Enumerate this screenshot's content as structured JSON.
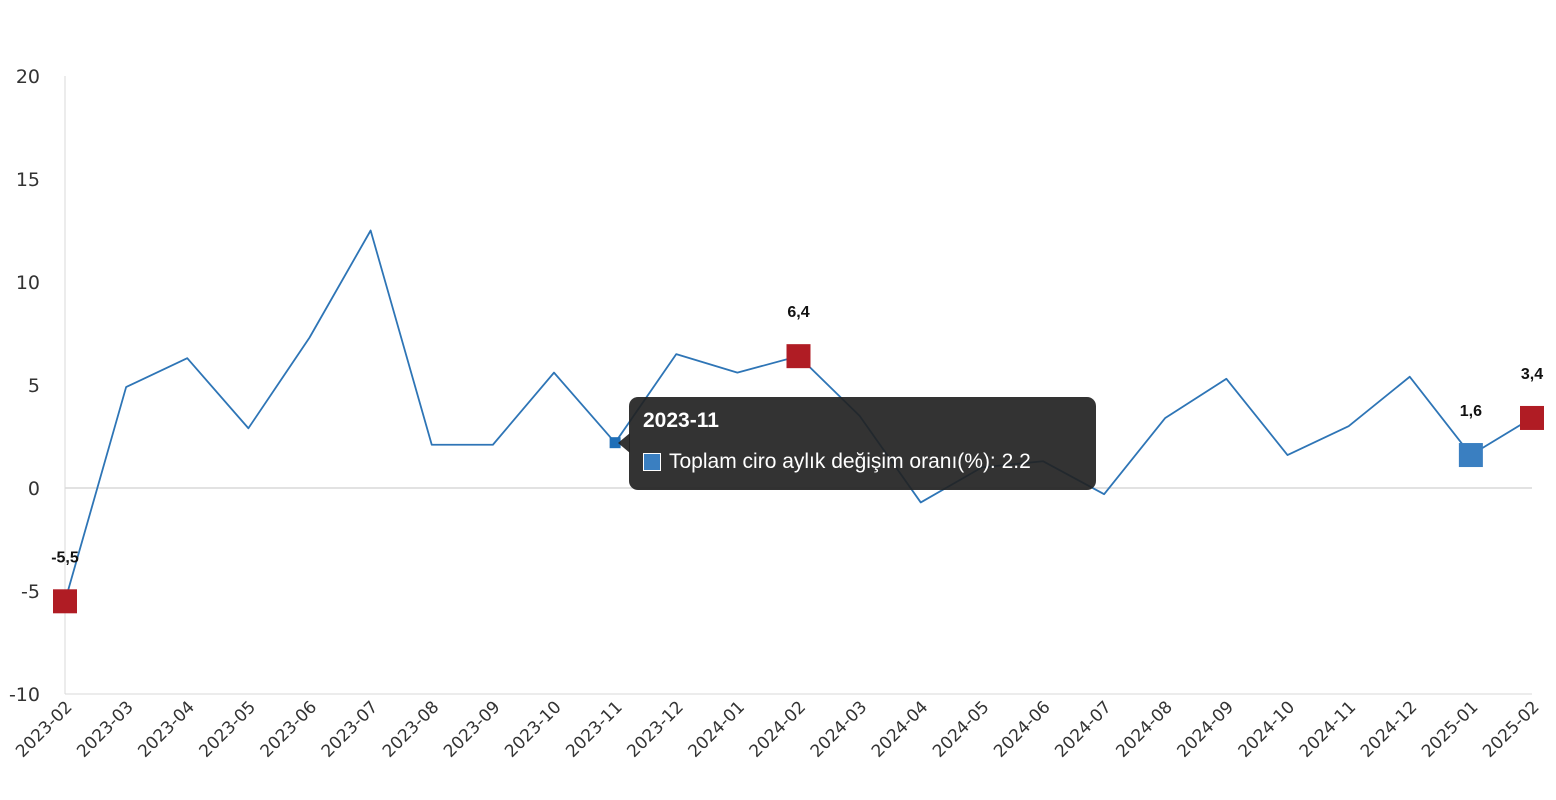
{
  "chart_data": {
    "type": "line",
    "categories": [
      "2023-02",
      "2023-03",
      "2023-04",
      "2023-05",
      "2023-06",
      "2023-07",
      "2023-08",
      "2023-09",
      "2023-10",
      "2023-11",
      "2023-12",
      "2024-01",
      "2024-02",
      "2024-03",
      "2024-04",
      "2024-05",
      "2024-06",
      "2024-07",
      "2024-08",
      "2024-09",
      "2024-10",
      "2024-11",
      "2024-12",
      "2025-01",
      "2025-02"
    ],
    "series": [
      {
        "name": "Toplam ciro aylık değişim oranı(%)",
        "values": [
          -5.5,
          4.9,
          6.3,
          2.9,
          7.3,
          12.5,
          2.1,
          2.1,
          5.6,
          2.2,
          6.5,
          5.6,
          6.4,
          3.5,
          -0.7,
          1.0,
          1.3,
          -0.3,
          3.4,
          5.3,
          1.6,
          3.0,
          5.4,
          1.6,
          3.4
        ],
        "color": "#2e75b6"
      }
    ],
    "ylim": [
      -10,
      20
    ],
    "yticks": [
      "-10",
      "-5",
      "0",
      "5",
      "10",
      "15",
      "20"
    ],
    "ytick_values": [
      -10,
      -5,
      0,
      5,
      10,
      15,
      20
    ],
    "grid": false,
    "highlighted_points": [
      {
        "category": "2023-02",
        "label": "-5,5",
        "color": "#b01c24"
      },
      {
        "category": "2024-02",
        "label": "6,4",
        "color": "#b01c24"
      },
      {
        "category": "2025-01",
        "label": "1,6",
        "color": "#3a7fc1"
      },
      {
        "category": "2025-02",
        "label": "3,4",
        "color": "#b01c24"
      }
    ],
    "hovered_category": "2023-11"
  },
  "tooltip": {
    "title": "2023-11",
    "row_text": "Toplam ciro aylık değişim oranı(%): 2.2",
    "swatch_color": "#3a7fc1"
  }
}
